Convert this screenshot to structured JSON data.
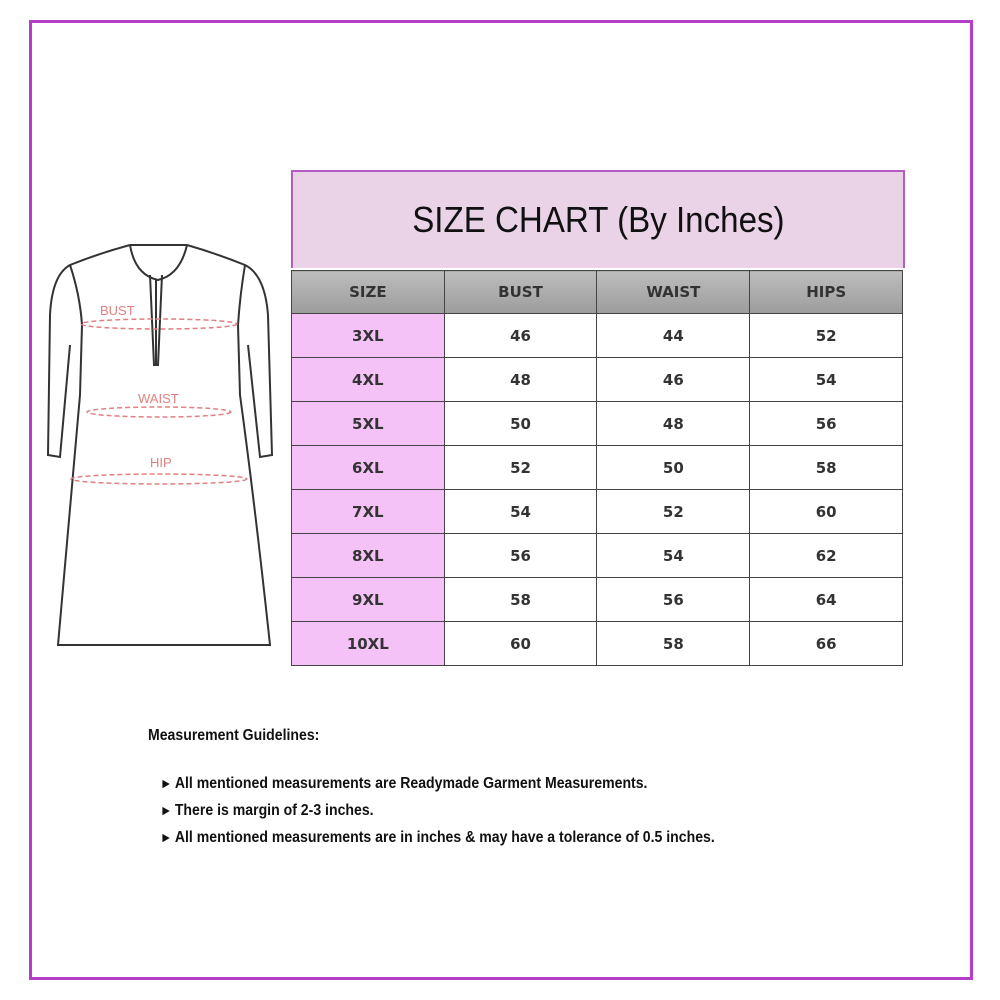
{
  "title": "SIZE CHART (By Inches)",
  "diagram_labels": {
    "bust": "BUST",
    "waist": "WAIST",
    "hip": "HIP"
  },
  "table": {
    "headers": [
      "SIZE",
      "BUST",
      "WAIST",
      "HIPS"
    ],
    "rows": [
      [
        "3XL",
        "46",
        "44",
        "52"
      ],
      [
        "4XL",
        "48",
        "46",
        "54"
      ],
      [
        "5XL",
        "50",
        "48",
        "56"
      ],
      [
        "6XL",
        "52",
        "50",
        "58"
      ],
      [
        "7XL",
        "54",
        "52",
        "60"
      ],
      [
        "8XL",
        "56",
        "54",
        "62"
      ],
      [
        "9XL",
        "58",
        "56",
        "64"
      ],
      [
        "10XL",
        "60",
        "58",
        "66"
      ]
    ]
  },
  "guidelines": {
    "heading": "Measurement Guidelines:",
    "bullet_icon": "triangle-right-icon",
    "items": [
      "All mentioned measurements are Readymade Garment Measurements.",
      "There is margin of 2-3 inches.",
      "All mentioned measurements are in inches & may have a tolerance of 0.5 inches."
    ]
  },
  "colors": {
    "frame": "#b33fc9",
    "title_bg": "#ebd3e7",
    "size_cell": "#f4c2f7",
    "label": "#e08080"
  }
}
